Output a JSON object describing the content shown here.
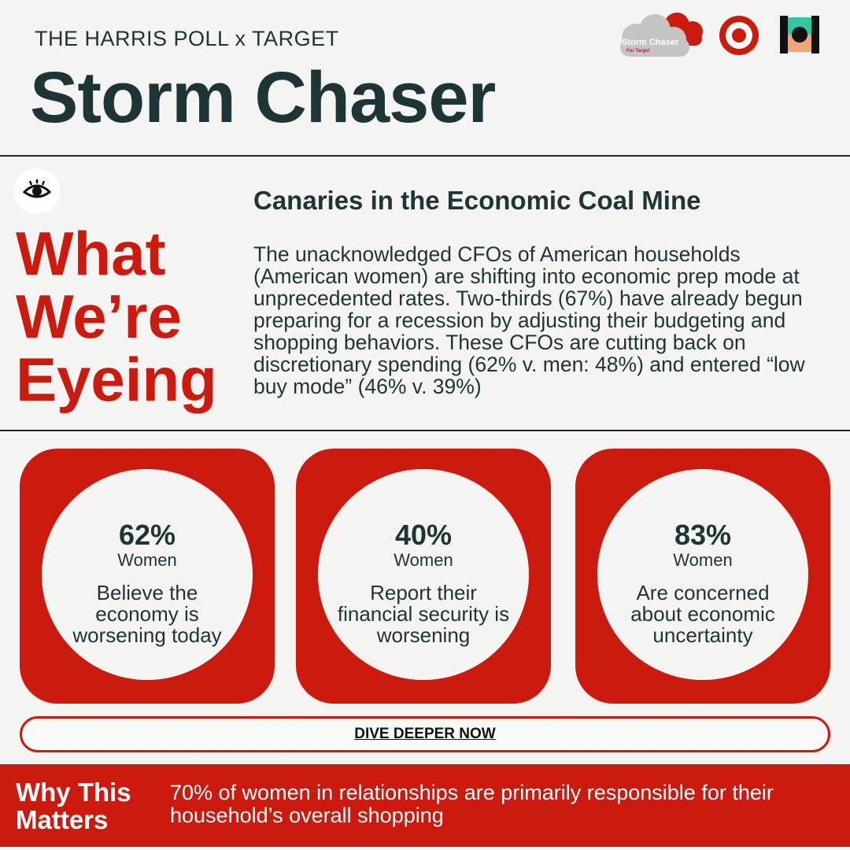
{
  "header": {
    "eyebrow": "THE HARRIS POLL x TARGET",
    "title": "Storm Chaser",
    "logos": {
      "storm_chaser_text": "Storm Chaser",
      "storm_chaser_sub": "For Target"
    }
  },
  "section": {
    "icon": "eye-icon",
    "heading_lines": [
      "What",
      "We’re",
      "Eyeing"
    ],
    "subheading": "Canaries in the Economic Coal Mine",
    "body": "The unacknowledged CFOs of American households (American women) are shifting into economic prep mode at unprecedented rates. Two-thirds (67%) have already begun preparing for a recession by adjusting their budgeting and shopping behaviors. These CFOs are cutting back on discretionary spending (62% v. men: 48%) and entered “low buy mode” (46% v. 39%)"
  },
  "stats": [
    {
      "value": "62%",
      "group": "Women",
      "description": "Believe the economy is worsening today"
    },
    {
      "value": "40%",
      "group": "Women",
      "description": "Report their financial security is worsening"
    },
    {
      "value": "83%",
      "group": "Women",
      "description": "Are concerned about economic uncertainty"
    }
  ],
  "cta": {
    "label": "DIVE DEEPER NOW"
  },
  "footer": {
    "title": "Why This Matters",
    "text": "70% of women in relationships are primarily responsible for their household’s overall shopping"
  },
  "colors": {
    "brand_red": "#cc1a0e",
    "text_dark": "#1d3535",
    "background": "#f4f4f2"
  }
}
